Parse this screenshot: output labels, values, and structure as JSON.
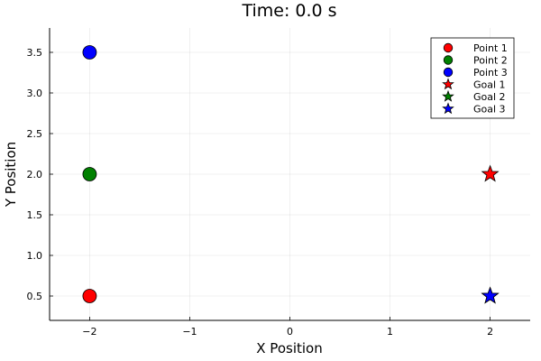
{
  "chart_data": {
    "type": "scatter",
    "title": "Time: 0.0 s",
    "xlabel": "X Position",
    "ylabel": "Y Position",
    "xlim": [
      -2.4,
      2.4
    ],
    "ylim": [
      0.2,
      3.8
    ],
    "xticks": [
      -2,
      -1,
      0,
      1,
      2
    ],
    "xtick_labels": [
      "−2",
      "−1",
      "0",
      "1",
      "2"
    ],
    "yticks": [
      0.5,
      1.0,
      1.5,
      2.0,
      2.5,
      3.0,
      3.5
    ],
    "ytick_labels": [
      "0.5",
      "1.0",
      "1.5",
      "2.0",
      "2.5",
      "3.0",
      "3.5"
    ],
    "grid": true,
    "legend_position": "top-right",
    "series": [
      {
        "name": "Point 1",
        "marker": "circle",
        "color": "#ff0000",
        "x": [
          -2
        ],
        "y": [
          0.5
        ]
      },
      {
        "name": "Point 2",
        "marker": "circle",
        "color": "#008000",
        "x": [
          -2
        ],
        "y": [
          2.0
        ]
      },
      {
        "name": "Point 3",
        "marker": "circle",
        "color": "#0000ff",
        "x": [
          -2
        ],
        "y": [
          3.5
        ]
      },
      {
        "name": "Goal 1",
        "marker": "star",
        "color": "#ff0000",
        "x": [
          2
        ],
        "y": [
          2.0
        ]
      },
      {
        "name": "Goal 2",
        "marker": "star",
        "color": "#008000",
        "x": [
          2
        ],
        "y": [
          0.5
        ]
      },
      {
        "name": "Goal 3",
        "marker": "star",
        "color": "#0000ff",
        "x": [
          2
        ],
        "y": [
          0.5
        ]
      }
    ]
  }
}
